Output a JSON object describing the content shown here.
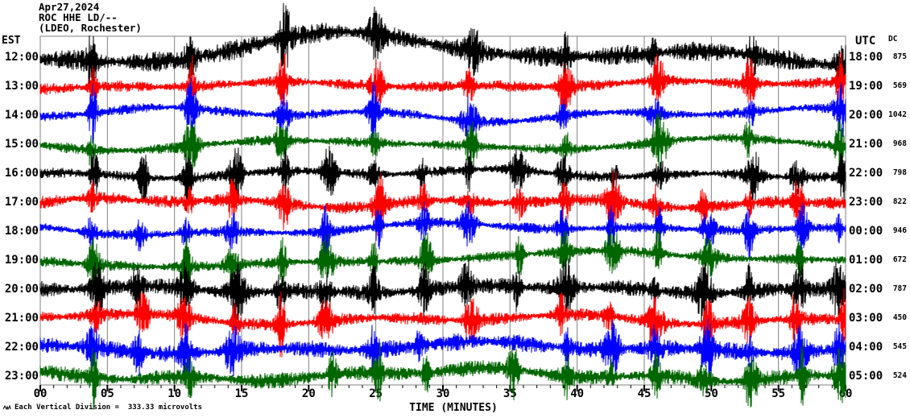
{
  "header": {
    "date": "Apr27,2024",
    "station": "ROC HHE LD/--",
    "site": "(LDEO, Rochester)"
  },
  "axes": {
    "left_label": "EST",
    "right_label": "UTC",
    "dc_label": "DC",
    "x_title": "TIME (MINUTES)",
    "x_ticks": [
      "00",
      "05",
      "10",
      "15",
      "20",
      "25",
      "30",
      "35",
      "40",
      "45",
      "50",
      "55",
      "60"
    ],
    "x_major_step_minutes": 5,
    "x_minor_step_minutes": 1,
    "scale_note": "Each Vertical Division =  333.33 microvolts"
  },
  "chart_data": {
    "type": "line",
    "subtype": "helicorder",
    "title": "ROC HHE LD/-- (LDEO, Rochester) Apr27,2024",
    "xlabel": "TIME (MINUTES)",
    "x_range_minutes": [
      0,
      60
    ],
    "grid": "vertical lines every 5 minutes",
    "grid_color": "#808080",
    "colors_cycle": [
      "#000000",
      "#ff0000",
      "#0000ff",
      "#006600"
    ],
    "rows": [
      {
        "est": "12:00",
        "utc": "18:00",
        "dc": "875",
        "color": "#000000"
      },
      {
        "est": "13:00",
        "utc": "19:00",
        "dc": "569",
        "color": "#ff0000"
      },
      {
        "est": "14:00",
        "utc": "20:00",
        "dc": "1042",
        "color": "#0000ff"
      },
      {
        "est": "15:00",
        "utc": "21:00",
        "dc": "968",
        "color": "#006600"
      },
      {
        "est": "16:00",
        "utc": "22:00",
        "dc": "798",
        "color": "#000000"
      },
      {
        "est": "17:00",
        "utc": "23:00",
        "dc": "822",
        "color": "#ff0000"
      },
      {
        "est": "18:00",
        "utc": "00:00",
        "dc": "946",
        "color": "#0000ff"
      },
      {
        "est": "19:00",
        "utc": "01:00",
        "dc": "672",
        "color": "#006600"
      },
      {
        "est": "20:00",
        "utc": "02:00",
        "dc": "787",
        "color": "#000000"
      },
      {
        "est": "21:00",
        "utc": "03:00",
        "dc": "450",
        "color": "#ff0000"
      },
      {
        "est": "22:00",
        "utc": "04:00",
        "dc": "545",
        "color": "#0000ff"
      },
      {
        "est": "23:00",
        "utc": "05:00",
        "dc": "524",
        "color": "#006600"
      }
    ],
    "event_minutes": [
      4,
      7.5,
      11,
      14.5,
      18,
      21.5,
      25,
      28.5,
      32,
      35.5,
      39,
      42.5,
      46,
      49.5,
      53,
      56.5,
      59.7
    ],
    "note": "Continuous seismic noise traces with recurring burst events aligned across hours"
  }
}
